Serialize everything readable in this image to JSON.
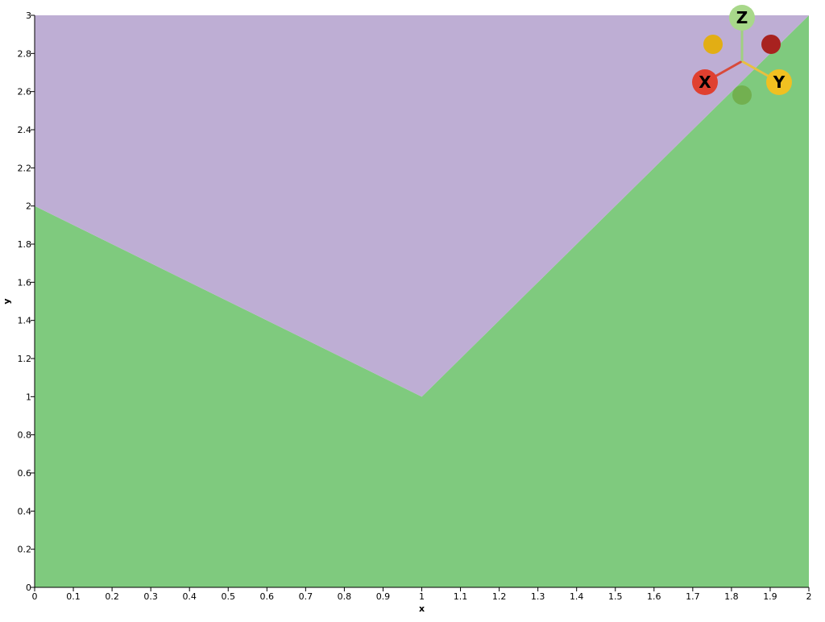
{
  "chart_data": {
    "type": "area",
    "xlabel": "x",
    "ylabel": "y",
    "xlim": [
      0,
      2
    ],
    "ylim": [
      0,
      3
    ],
    "x_ticks": [
      "0",
      "0.1",
      "0.2",
      "0.3",
      "0.4",
      "0.5",
      "0.6",
      "0.7",
      "0.8",
      "0.9",
      "1",
      "1.1",
      "1.2",
      "1.3",
      "1.4",
      "1.5",
      "1.6",
      "1.7",
      "1.8",
      "1.9",
      "2"
    ],
    "y_ticks": [
      "0",
      "0.2",
      "0.4",
      "0.6",
      "0.8",
      "1",
      "1.2",
      "1.4",
      "1.6",
      "1.8",
      "2",
      "2.2",
      "2.4",
      "2.6",
      "2.8",
      "3"
    ],
    "grid": false,
    "regions": [
      {
        "fill": "#7fca7e",
        "points": [
          [
            0,
            0
          ],
          [
            2,
            0
          ],
          [
            2,
            3
          ],
          [
            1,
            1
          ],
          [
            0,
            2
          ]
        ]
      },
      {
        "fill": "#beaed4",
        "points": [
          [
            0,
            2
          ],
          [
            1,
            1
          ],
          [
            2,
            3
          ],
          [
            0,
            3
          ]
        ]
      }
    ],
    "orientation_gizmo": {
      "axes": [
        {
          "label": "X",
          "color": "#e04030",
          "axis_color": "#d84a3a"
        },
        {
          "label": "Y",
          "color": "#f1c021",
          "axis_color": "#e8c040"
        },
        {
          "label": "Z",
          "color": "#a8d88a",
          "axis_color": "#a0d080"
        }
      ],
      "negative_markers": [
        {
          "color": "#e2ae14"
        },
        {
          "color": "#a8221f"
        },
        {
          "color": "#72b050"
        }
      ]
    }
  }
}
